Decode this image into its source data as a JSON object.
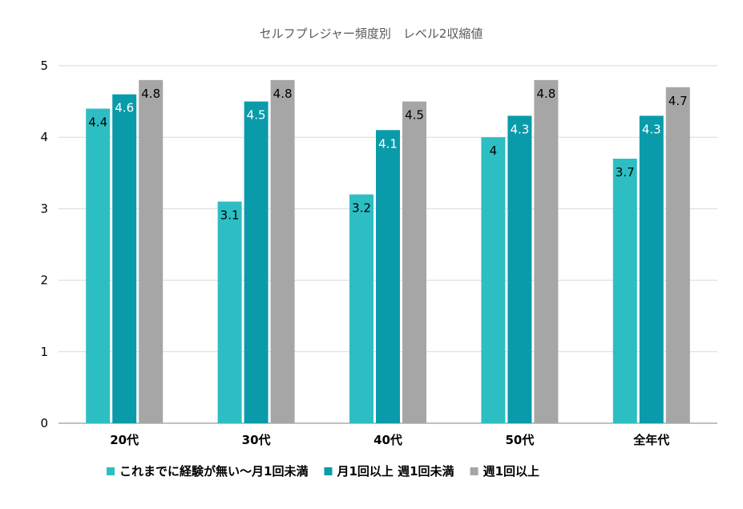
{
  "chart_data": {
    "type": "bar",
    "title": "セルフプレジャー頻度別　レベル2収縮値",
    "xlabel": "",
    "ylabel": "",
    "ylim": [
      0,
      5
    ],
    "yticks": [
      "0",
      "1",
      "2",
      "3",
      "4",
      "5"
    ],
    "grid": true,
    "legend_position": "bottom",
    "categories": [
      "20代",
      "30代",
      "40代",
      "50代",
      "全年代"
    ],
    "series": [
      {
        "name": "これまでに経験が無い～月1回未満",
        "color": "#2DBEC3",
        "label_color": "#000000",
        "values": [
          4.4,
          3.1,
          3.2,
          4,
          3.7
        ],
        "labels": [
          "4.4",
          "3.1",
          "3.2",
          "4",
          "3.7"
        ]
      },
      {
        "name": "月1回以上 週1回未満",
        "color": "#0A9BAA",
        "label_color": "#ffffff",
        "values": [
          4.6,
          4.5,
          4.1,
          4.3,
          4.3
        ],
        "labels": [
          "4.6",
          "4.5",
          "4.1",
          "4.3",
          "4.3"
        ]
      },
      {
        "name": "週1回以上",
        "color": "#A6A6A6",
        "label_color": "#000000",
        "values": [
          4.8,
          4.8,
          4.5,
          4.8,
          4.7
        ],
        "labels": [
          "4.8",
          "4.8",
          "4.5",
          "4.8",
          "4.7"
        ]
      }
    ]
  }
}
